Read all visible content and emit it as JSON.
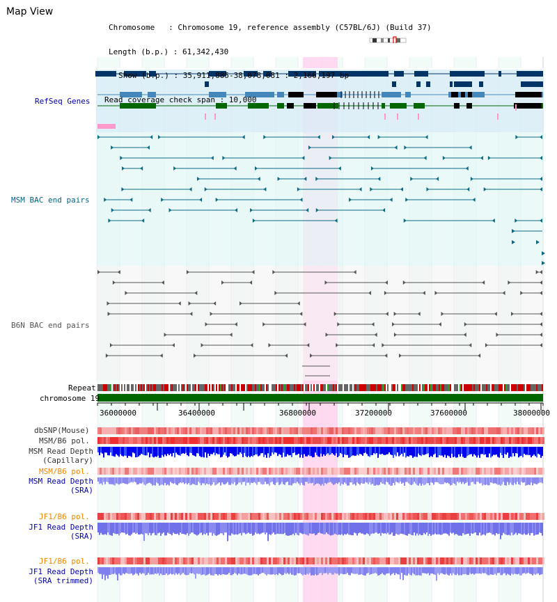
{
  "header": {
    "map_title": "Map View",
    "chromosome_line": "Chromosome   : Chromosome 19, reference assembly (C57BL/6J) (Build 37)",
    "length_line": "Length (b.p.) : 61,342,430",
    "show_line": "Show (b.p.) : 35,911,885-38,078,081 : 2,166,197 bp",
    "coverage_line": "Read coverage check span : 10,000"
  },
  "tracks": {
    "refseq": {
      "label": "RefSeq Genes",
      "color": "#0000aa"
    },
    "msm_bac": {
      "label": "MSM BAC end pairs",
      "color": "#006688"
    },
    "b6n_bac": {
      "label": "B6N BAC end pairs",
      "color": "#555555"
    },
    "repeat": {
      "label": "Repeat"
    },
    "chromosome": {
      "label": "chromosome 19",
      "bar_color": "#006600"
    },
    "dbsnp": {
      "label": "dbSNP(Mouse)"
    },
    "msm_b6_pol": {
      "label": "MSM/B6 pol."
    },
    "msm_read_depth_cap": {
      "label_line1": "MSM Read Depth",
      "label_line2": "(Capillary)"
    },
    "msm_b6_pol_2": {
      "label": "MSM/B6 pol.",
      "color": "#ee8800"
    },
    "msm_read_depth_sra": {
      "label_line1": "MSM Read Depth",
      "label_line2": "(SRA)",
      "color": "#0000aa"
    },
    "jf1_b6_pol": {
      "label": "JF1/B6 pol.",
      "color": "#ee8800"
    },
    "jf1_read_depth_sra": {
      "label_line1": "JF1 Read Depth",
      "label_line2": "(SRA)",
      "color": "#0000aa"
    },
    "jf1_b6_pol_2": {
      "label": "JF1/B6 pol.",
      "color": "#ee8800"
    },
    "jf1_read_depth_trim": {
      "label_line1": "JF1 Read Depth",
      "label_line2": "(SRA trimmed)",
      "color": "#0000aa"
    }
  },
  "axis": {
    "ticks": [
      "36000000",
      "36400000",
      "36800000",
      "37200000",
      "37600000",
      "38000000"
    ]
  },
  "highlight": {
    "start_label": "36800000"
  }
}
